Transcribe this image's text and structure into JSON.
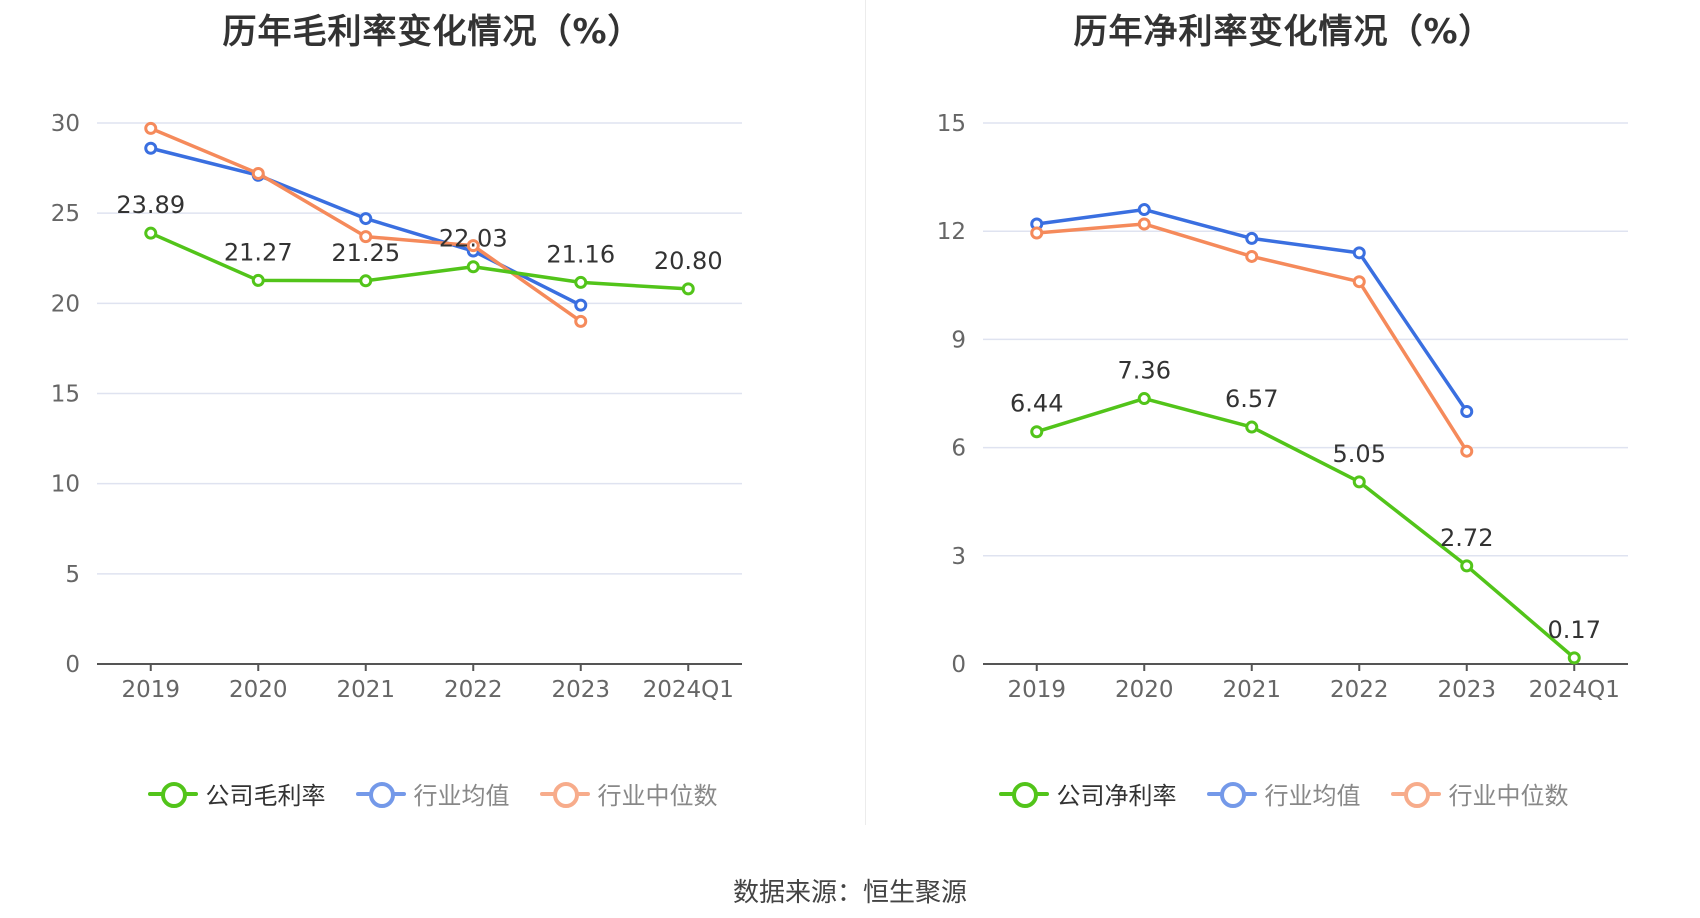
{
  "source_label": "数据来源：恒生聚源",
  "colors": {
    "company": "#52c41a",
    "avg": "#3a6fe0",
    "median": "#f58a5b",
    "grid": "#dfe3f0",
    "axis": "#666666"
  },
  "charts": [
    {
      "title": "历年毛利率变化情况（%）",
      "legend": [
        {
          "label": "公司毛利率",
          "key": "company"
        },
        {
          "label": "行业均值",
          "key": "avg"
        },
        {
          "label": "行业中位数",
          "key": "median"
        }
      ]
    },
    {
      "title": "历年净利率变化情况（%）",
      "legend": [
        {
          "label": "公司净利率",
          "key": "company"
        },
        {
          "label": "行业均值",
          "key": "avg"
        },
        {
          "label": "行业中位数",
          "key": "median"
        }
      ]
    }
  ],
  "chart_data": [
    {
      "type": "line",
      "title": "历年毛利率变化情况（%）",
      "x": [
        "2019",
        "2020",
        "2021",
        "2022",
        "2023",
        "2024Q1"
      ],
      "ylim": [
        0,
        30
      ],
      "yticks": [
        0,
        5,
        10,
        15,
        20,
        25,
        30
      ],
      "grid": true,
      "legend_position": "bottom",
      "series": [
        {
          "name": "公司毛利率",
          "key": "company",
          "values": [
            23.89,
            21.27,
            21.25,
            22.03,
            21.16,
            20.8
          ],
          "labels": [
            "23.89",
            "21.27",
            "21.25",
            "22.03",
            "21.16",
            "20.80"
          ]
        },
        {
          "name": "行业均值",
          "key": "avg",
          "values": [
            28.6,
            27.1,
            24.7,
            22.9,
            19.9,
            null
          ]
        },
        {
          "name": "行业中位数",
          "key": "median",
          "values": [
            29.7,
            27.2,
            23.7,
            23.2,
            19.0,
            null
          ]
        }
      ]
    },
    {
      "type": "line",
      "title": "历年净利率变化情况（%）",
      "x": [
        "2019",
        "2020",
        "2021",
        "2022",
        "2023",
        "2024Q1"
      ],
      "ylim": [
        0,
        15
      ],
      "yticks": [
        0,
        3,
        6,
        9,
        12,
        15
      ],
      "grid": true,
      "legend_position": "bottom",
      "series": [
        {
          "name": "公司净利率",
          "key": "company",
          "values": [
            6.44,
            7.36,
            6.57,
            5.05,
            2.72,
            0.17
          ],
          "labels": [
            "6.44",
            "7.36",
            "6.57",
            "5.05",
            "2.72",
            "0.17"
          ]
        },
        {
          "name": "行业均值",
          "key": "avg",
          "values": [
            12.2,
            12.6,
            11.8,
            11.4,
            7.0,
            null
          ]
        },
        {
          "name": "行业中位数",
          "key": "median",
          "values": [
            11.95,
            12.2,
            11.3,
            10.6,
            5.9,
            null
          ]
        }
      ]
    }
  ]
}
